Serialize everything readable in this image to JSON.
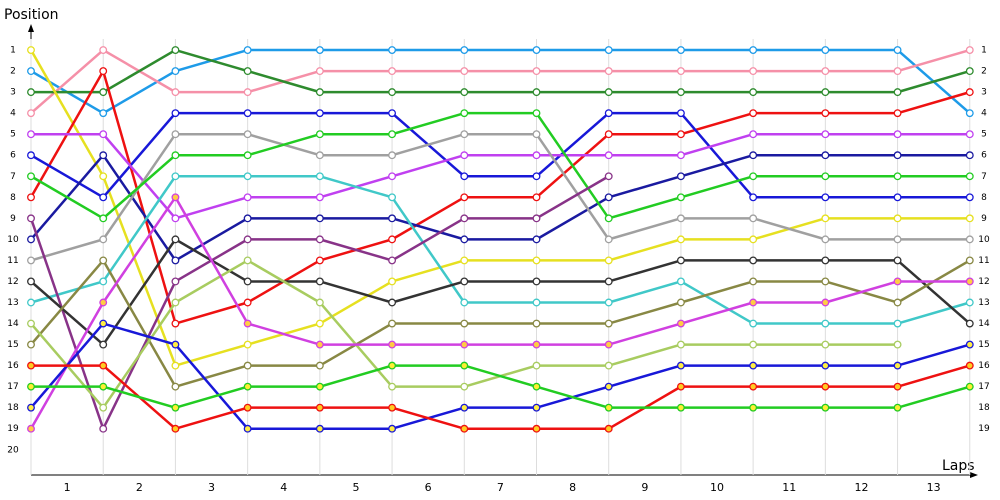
{
  "chart_data": {
    "type": "line",
    "y_label": "Position",
    "x_label": "Laps",
    "x": [
      0,
      1,
      2,
      3,
      4,
      5,
      6,
      7,
      8,
      9,
      10,
      11,
      12,
      13
    ],
    "xlim": [
      0,
      13.1
    ],
    "xticks": [
      {
        "value": 0.5,
        "label": "1"
      },
      {
        "value": 1.5,
        "label": "2"
      },
      {
        "value": 2.5,
        "label": "3"
      },
      {
        "value": 3.5,
        "label": "4"
      },
      {
        "value": 4.5,
        "label": "5"
      },
      {
        "value": 5.5,
        "label": "6"
      },
      {
        "value": 6.5,
        "label": "7"
      },
      {
        "value": 7.5,
        "label": "8"
      },
      {
        "value": 8.5,
        "label": "9"
      },
      {
        "value": 9.5,
        "label": "10"
      },
      {
        "value": 10.5,
        "label": "11"
      },
      {
        "value": 11.5,
        "label": "12"
      },
      {
        "value": 12.5,
        "label": "13"
      }
    ],
    "ylim": [
      0,
      21.2
    ],
    "y_inverted": true,
    "yticks": [
      1,
      2,
      3,
      4,
      5,
      6,
      7,
      8,
      9,
      10,
      11,
      12,
      13,
      14,
      15,
      16,
      17,
      18,
      19,
      20
    ],
    "y2ticks": [
      1,
      2,
      3,
      4,
      5,
      6,
      7,
      8,
      9,
      10,
      11,
      12,
      13,
      14,
      15,
      16,
      17,
      18,
      19
    ],
    "grid": true,
    "series": [
      {
        "color": "#1e9be8",
        "marker_fill": "#ffffff",
        "values": [
          2,
          4,
          2,
          1,
          1,
          1,
          1,
          1,
          1,
          1,
          1,
          1,
          1,
          4
        ]
      },
      {
        "color": "#f590a8",
        "marker_fill": "#ffffff",
        "values": [
          4,
          1,
          3,
          3,
          2,
          2,
          2,
          2,
          2,
          2,
          2,
          2,
          2,
          1
        ]
      },
      {
        "color": "#2e8b2e",
        "marker_fill": "#ffffff",
        "values": [
          3,
          3,
          1,
          2,
          3,
          3,
          3,
          3,
          3,
          3,
          3,
          3,
          3,
          2
        ]
      },
      {
        "color": "#e6e020",
        "marker_fill": "#ffffff",
        "values": [
          1,
          7,
          16,
          15,
          14,
          12,
          11,
          11,
          11,
          10,
          10,
          9,
          9,
          9
        ]
      },
      {
        "color": "#ee1111",
        "marker_fill": "#ffffff",
        "values": [
          8,
          2,
          14,
          13,
          11,
          10,
          8,
          8,
          5,
          5,
          4,
          4,
          4,
          3
        ]
      },
      {
        "color": "#1818d8",
        "marker_fill": "#ffffff",
        "values": [
          6,
          8,
          4,
          4,
          4,
          4,
          7,
          7,
          4,
          4,
          8,
          8,
          8,
          8
        ]
      },
      {
        "color": "#1a1aa0",
        "marker_fill": "#ffffff",
        "values": [
          10,
          6,
          11,
          9,
          9,
          9,
          10,
          10,
          8,
          7,
          6,
          6,
          6,
          6
        ]
      },
      {
        "color": "#c040f0",
        "marker_fill": "#ffffff",
        "values": [
          5,
          5,
          9,
          8,
          8,
          7,
          6,
          6,
          6,
          6,
          5,
          5,
          5,
          5
        ]
      },
      {
        "color": "#a0a0a0",
        "marker_fill": "#ffffff",
        "values": [
          11,
          10,
          5,
          5,
          6,
          6,
          5,
          5,
          10,
          9,
          9,
          10,
          10,
          10
        ]
      },
      {
        "color": "#22cc22",
        "marker_fill": "#ffffff",
        "values": [
          7,
          9,
          6,
          6,
          5,
          5,
          4,
          4,
          9,
          8,
          7,
          7,
          7,
          7
        ]
      },
      {
        "color": "#40c8c8",
        "marker_fill": "#ffffff",
        "values": [
          13,
          12,
          7,
          7,
          7,
          8,
          13,
          13,
          13,
          12,
          14,
          14,
          14,
          13
        ]
      },
      {
        "color": "#883388",
        "marker_fill": "#ffffff",
        "values": [
          9,
          19,
          12,
          10,
          10,
          11,
          9,
          9,
          7,
          null,
          null,
          null,
          null,
          null
        ]
      },
      {
        "color": "#333333",
        "marker_fill": "#ffffff",
        "values": [
          12,
          15,
          10,
          12,
          12,
          13,
          12,
          12,
          12,
          11,
          11,
          11,
          11,
          14
        ]
      },
      {
        "color": "#888844",
        "marker_fill": "#ffffff",
        "values": [
          15,
          11,
          17,
          16,
          16,
          14,
          14,
          14,
          14,
          13,
          12,
          12,
          13,
          11
        ]
      },
      {
        "color": "#a8cc60",
        "marker_fill": "#ffffff",
        "values": [
          14,
          18,
          13,
          11,
          13,
          17,
          17,
          16,
          16,
          15,
          15,
          15,
          15,
          null
        ]
      },
      {
        "color": "#d040e0",
        "marker_fill": "#ffcc44",
        "values": [
          19,
          13,
          8,
          14,
          15,
          15,
          15,
          15,
          15,
          14,
          13,
          13,
          12,
          12
        ]
      },
      {
        "color": "#1818d8",
        "marker_fill": "#ffee44",
        "values": [
          18,
          14,
          15,
          19,
          19,
          19,
          18,
          18,
          17,
          16,
          16,
          16,
          16,
          15
        ]
      },
      {
        "color": "#ee1111",
        "marker_fill": "#ffcc22",
        "values": [
          16,
          16,
          19,
          18,
          18,
          18,
          19,
          19,
          19,
          17,
          17,
          17,
          17,
          16
        ]
      },
      {
        "color": "#22cc22",
        "marker_fill": "#ffee33",
        "values": [
          17,
          17,
          18,
          17,
          17,
          16,
          16,
          17,
          18,
          18,
          18,
          18,
          18,
          17
        ]
      }
    ]
  }
}
